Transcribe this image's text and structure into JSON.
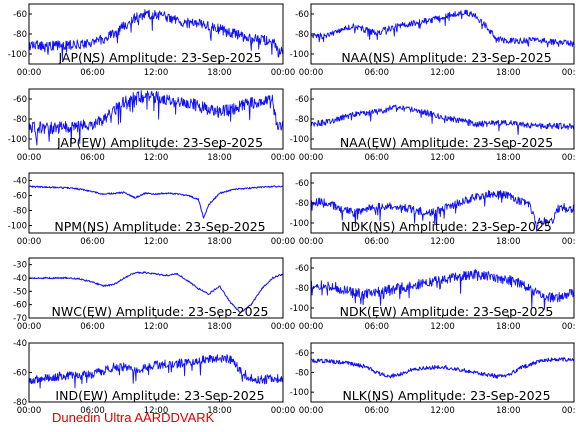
{
  "footer_text": "Dunedin Ultra AARDDVARK",
  "trace_color": "#1010ff",
  "x_tick_labels": [
    "00:00",
    "06:00",
    "12:00",
    "18:00",
    "00:00"
  ],
  "chart_data": [
    {
      "type": "line",
      "title": "JAP(NS) Amplitude: 23-Sep-2025",
      "xlabel": "",
      "ylabel": "",
      "x_range_hours": [
        0,
        24
      ],
      "ylim": [
        -110,
        -50
      ],
      "yticks": [
        -60,
        -80,
        -100
      ],
      "series": [
        {
          "x_hours": [
            0,
            2,
            4,
            5,
            6,
            7,
            8,
            9,
            10,
            11,
            12,
            13,
            14,
            15,
            16,
            17,
            18,
            19,
            20,
            21,
            22,
            23,
            23.5,
            24
          ],
          "values": [
            -91,
            -92,
            -91,
            -90,
            -88,
            -85,
            -80,
            -72,
            -64,
            -60,
            -61,
            -63,
            -67,
            -69,
            -70,
            -72,
            -75,
            -78,
            -82,
            -85,
            -86,
            -86,
            -98,
            -98
          ],
          "noise": 5
        }
      ]
    },
    {
      "type": "line",
      "title": "NAA(NS) Amplitude: 23-Sep-2025",
      "xlabel": "",
      "ylabel": "",
      "x_range_hours": [
        0,
        24
      ],
      "ylim": [
        -110,
        -50
      ],
      "yticks": [
        -60,
        -80,
        -100
      ],
      "series": [
        {
          "x_hours": [
            0,
            1,
            2,
            3,
            4,
            5,
            6,
            7,
            8,
            9,
            10,
            11,
            12,
            13,
            14,
            15,
            16,
            17,
            18,
            19,
            20,
            21,
            22,
            23,
            24
          ],
          "values": [
            -81,
            -82,
            -80,
            -75,
            -72,
            -76,
            -79,
            -75,
            -72,
            -70,
            -68,
            -66,
            -63,
            -60,
            -58,
            -62,
            -72,
            -85,
            -87,
            -87,
            -86,
            -86,
            -88,
            -88,
            -90
          ],
          "noise": 3
        }
      ]
    },
    {
      "type": "line",
      "title": "JAP(EW) Amplitude: 23-Sep-2025",
      "xlabel": "",
      "ylabel": "",
      "x_range_hours": [
        0,
        24
      ],
      "ylim": [
        -110,
        -50
      ],
      "yticks": [
        -60,
        -80,
        -100
      ],
      "series": [
        {
          "x_hours": [
            0,
            2,
            4,
            5,
            6,
            7,
            8,
            9,
            10,
            11,
            12,
            13,
            14,
            15,
            16,
            17,
            18,
            19,
            20,
            21,
            22,
            23,
            23.5,
            24
          ],
          "values": [
            -88,
            -89,
            -88,
            -87,
            -86,
            -80,
            -72,
            -63,
            -58,
            -57,
            -58,
            -60,
            -63,
            -64,
            -67,
            -70,
            -73,
            -71,
            -67,
            -64,
            -63,
            -62,
            -88,
            -88
          ],
          "noise": 6
        }
      ]
    },
    {
      "type": "line",
      "title": "NAA(EW) Amplitude: 23-Sep-2025",
      "xlabel": "",
      "ylabel": "",
      "x_range_hours": [
        0,
        24
      ],
      "ylim": [
        -110,
        -50
      ],
      "yticks": [
        -60,
        -80,
        -100
      ],
      "series": [
        {
          "x_hours": [
            0,
            1,
            2,
            3,
            4,
            5,
            6,
            7,
            8,
            9,
            10,
            11,
            12,
            13,
            14,
            15,
            16,
            17,
            18,
            19,
            20,
            21,
            22,
            23,
            24
          ],
          "values": [
            -85,
            -84,
            -82,
            -78,
            -75,
            -74,
            -73,
            -70,
            -68,
            -70,
            -72,
            -75,
            -78,
            -80,
            -82,
            -85,
            -85,
            -84,
            -84,
            -85,
            -86,
            -87,
            -87,
            -87,
            -88
          ],
          "noise": 3
        }
      ]
    },
    {
      "type": "line",
      "title": "NPM(NS) Amplitude: 23-Sep-2025",
      "xlabel": "",
      "ylabel": "",
      "x_range_hours": [
        0,
        24
      ],
      "ylim": [
        -110,
        -30
      ],
      "yticks": [
        -40,
        -60,
        -80,
        -100
      ],
      "series": [
        {
          "x_hours": [
            0,
            2,
            4,
            5,
            6,
            7,
            8,
            9,
            10,
            11,
            12,
            13,
            14,
            15,
            16,
            16.5,
            17,
            18,
            19,
            20,
            21,
            22,
            23,
            24
          ],
          "values": [
            -48,
            -49,
            -50,
            -52,
            -55,
            -58,
            -57,
            -56,
            -63,
            -57,
            -58,
            -57,
            -58,
            -60,
            -65,
            -90,
            -72,
            -57,
            -53,
            -51,
            -50,
            -49,
            -48,
            -48
          ],
          "noise": 1
        }
      ]
    },
    {
      "type": "line",
      "title": "NDK(NS) Amplitude: 23-Sep-2025",
      "xlabel": "",
      "ylabel": "",
      "x_range_hours": [
        0,
        24
      ],
      "ylim": [
        -110,
        -50
      ],
      "yticks": [
        -60,
        -80,
        -100
      ],
      "series": [
        {
          "x_hours": [
            0,
            1,
            2,
            3,
            4,
            5,
            6,
            7,
            8,
            9,
            10,
            11,
            12,
            13,
            14,
            15,
            16,
            17,
            18,
            19,
            20,
            20.5,
            21,
            22,
            22.5,
            23,
            24
          ],
          "values": [
            -80,
            -78,
            -82,
            -87,
            -90,
            -86,
            -84,
            -83,
            -84,
            -86,
            -88,
            -90,
            -86,
            -82,
            -78,
            -74,
            -72,
            -70,
            -73,
            -78,
            -82,
            -100,
            -98,
            -98,
            -86,
            -84,
            -86
          ],
          "noise": 4
        }
      ]
    },
    {
      "type": "line",
      "title": "NWC(EW) Amplitude: 23-Sep-2025",
      "xlabel": "",
      "ylabel": "",
      "x_range_hours": [
        0,
        24
      ],
      "ylim": [
        -70,
        -25
      ],
      "yticks": [
        -30,
        -40,
        -50,
        -60,
        -70
      ],
      "series": [
        {
          "x_hours": [
            0,
            2,
            4,
            5,
            6,
            7,
            8,
            9,
            10,
            11,
            12,
            13,
            14,
            15,
            16,
            17,
            18,
            19,
            20,
            21,
            22,
            23,
            24
          ],
          "values": [
            -40,
            -40,
            -40,
            -41,
            -43,
            -46,
            -45,
            -40,
            -36,
            -36,
            -37,
            -38,
            -37,
            -42,
            -48,
            -52,
            -46,
            -58,
            -66,
            -60,
            -48,
            -40,
            -37
          ],
          "noise": 0.6
        }
      ]
    },
    {
      "type": "line",
      "title": "NDK(EW) Amplitude: 23-Sep-2025",
      "xlabel": "",
      "ylabel": "",
      "x_range_hours": [
        0,
        24
      ],
      "ylim": [
        -110,
        -50
      ],
      "yticks": [
        -60,
        -80,
        -100
      ],
      "series": [
        {
          "x_hours": [
            0,
            1,
            2,
            3,
            4,
            5,
            6,
            7,
            8,
            9,
            10,
            11,
            12,
            13,
            14,
            15,
            16,
            17,
            18,
            19,
            20,
            21,
            22,
            23,
            24
          ],
          "values": [
            -78,
            -76,
            -78,
            -82,
            -85,
            -86,
            -84,
            -82,
            -80,
            -78,
            -76,
            -74,
            -72,
            -70,
            -68,
            -66,
            -68,
            -70,
            -72,
            -75,
            -82,
            -86,
            -90,
            -88,
            -84
          ],
          "noise": 5
        }
      ]
    },
    {
      "type": "line",
      "title": "IND(EW) Amplitude: 23-Sep-2025",
      "xlabel": "",
      "ylabel": "",
      "x_range_hours": [
        0,
        24
      ],
      "ylim": [
        -80,
        -40
      ],
      "yticks": [
        -40,
        -60,
        -80
      ],
      "series": [
        {
          "x_hours": [
            0,
            2,
            4,
            5,
            6,
            7,
            8,
            9,
            10,
            11,
            12,
            13,
            14,
            15,
            16,
            17,
            18,
            19,
            20,
            21,
            22,
            23,
            24
          ],
          "values": [
            -66,
            -63,
            -62,
            -62,
            -61,
            -59,
            -56,
            -56,
            -58,
            -57,
            -55,
            -54,
            -54,
            -53,
            -52,
            -51,
            -50,
            -51,
            -59,
            -64,
            -65,
            -64,
            -64
          ],
          "noise": 3
        }
      ]
    },
    {
      "type": "line",
      "title": "NLK(NS) Amplitude: 23-Sep-2025",
      "xlabel": "",
      "ylabel": "",
      "x_range_hours": [
        0,
        24
      ],
      "ylim": [
        -110,
        -50
      ],
      "yticks": [
        -60,
        -80,
        -100
      ],
      "series": [
        {
          "x_hours": [
            0,
            1,
            2,
            3,
            4,
            5,
            6,
            7,
            8,
            9,
            10,
            11,
            12,
            13,
            14,
            15,
            16,
            17,
            18,
            19,
            20,
            21,
            22,
            23,
            24
          ],
          "values": [
            -68,
            -68,
            -69,
            -70,
            -72,
            -74,
            -80,
            -84,
            -82,
            -78,
            -76,
            -75,
            -74,
            -76,
            -78,
            -80,
            -82,
            -84,
            -83,
            -76,
            -72,
            -68,
            -67,
            -67,
            -67
          ],
          "noise": 2
        }
      ]
    }
  ]
}
